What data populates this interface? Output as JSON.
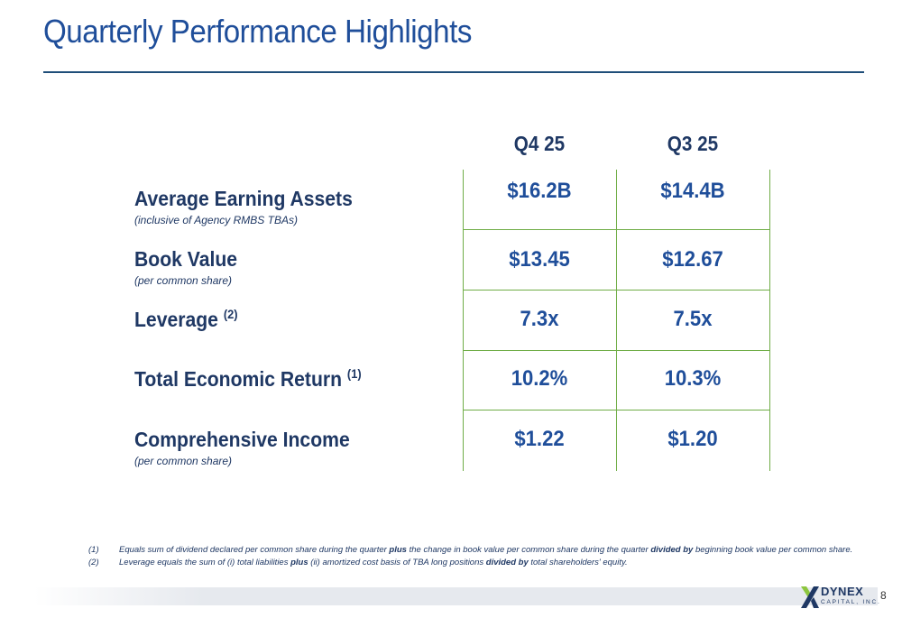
{
  "title": "Quarterly Performance Highlights",
  "columns": [
    "Q4 25",
    "Q3 25"
  ],
  "rows": [
    {
      "label": "Average Earning Assets",
      "sup": "",
      "sub": "(inclusive of Agency RMBS TBAs)",
      "values": [
        "$16.2B",
        "$14.4B"
      ]
    },
    {
      "label": "Book Value",
      "sup": "",
      "sub": "(per common share)",
      "values": [
        "$13.45",
        "$12.67"
      ]
    },
    {
      "label": "Leverage",
      "sup": "(2)",
      "sub": "",
      "values": [
        "7.3x",
        "7.5x"
      ]
    },
    {
      "label": "Total Economic Return",
      "sup": "(1)",
      "sub": "",
      "values": [
        "10.2%",
        "10.3%"
      ]
    },
    {
      "label": "Comprehensive Income",
      "sup": "",
      "sub": "(per common share)",
      "values": [
        "$1.22",
        "$1.20"
      ]
    }
  ],
  "footnotes": [
    {
      "num": "(1)",
      "parts": [
        {
          "t": "Equals sum of dividend declared per common share during the quarter ",
          "b": false
        },
        {
          "t": "plus",
          "b": true
        },
        {
          "t": " the change in book value per common share during the quarter ",
          "b": false
        },
        {
          "t": "divided by",
          "b": true
        },
        {
          "t": " beginning book value per common share.",
          "b": false
        }
      ]
    },
    {
      "num": "(2)",
      "parts": [
        {
          "t": "Leverage equals the sum of (i) total liabilities ",
          "b": false
        },
        {
          "t": "plus",
          "b": true
        },
        {
          "t": " (ii) amortized cost basis of TBA long positions ",
          "b": false
        },
        {
          "t": "divided by",
          "b": true
        },
        {
          "t": " total shareholders' equity.",
          "b": false
        }
      ]
    }
  ],
  "logo": {
    "word": "DYNEX",
    "sub": "CAPITAL, INC."
  },
  "page_number": "8",
  "colors": {
    "title": "#1f4e9a",
    "text": "#1f3864",
    "grid": "#70ad47"
  }
}
